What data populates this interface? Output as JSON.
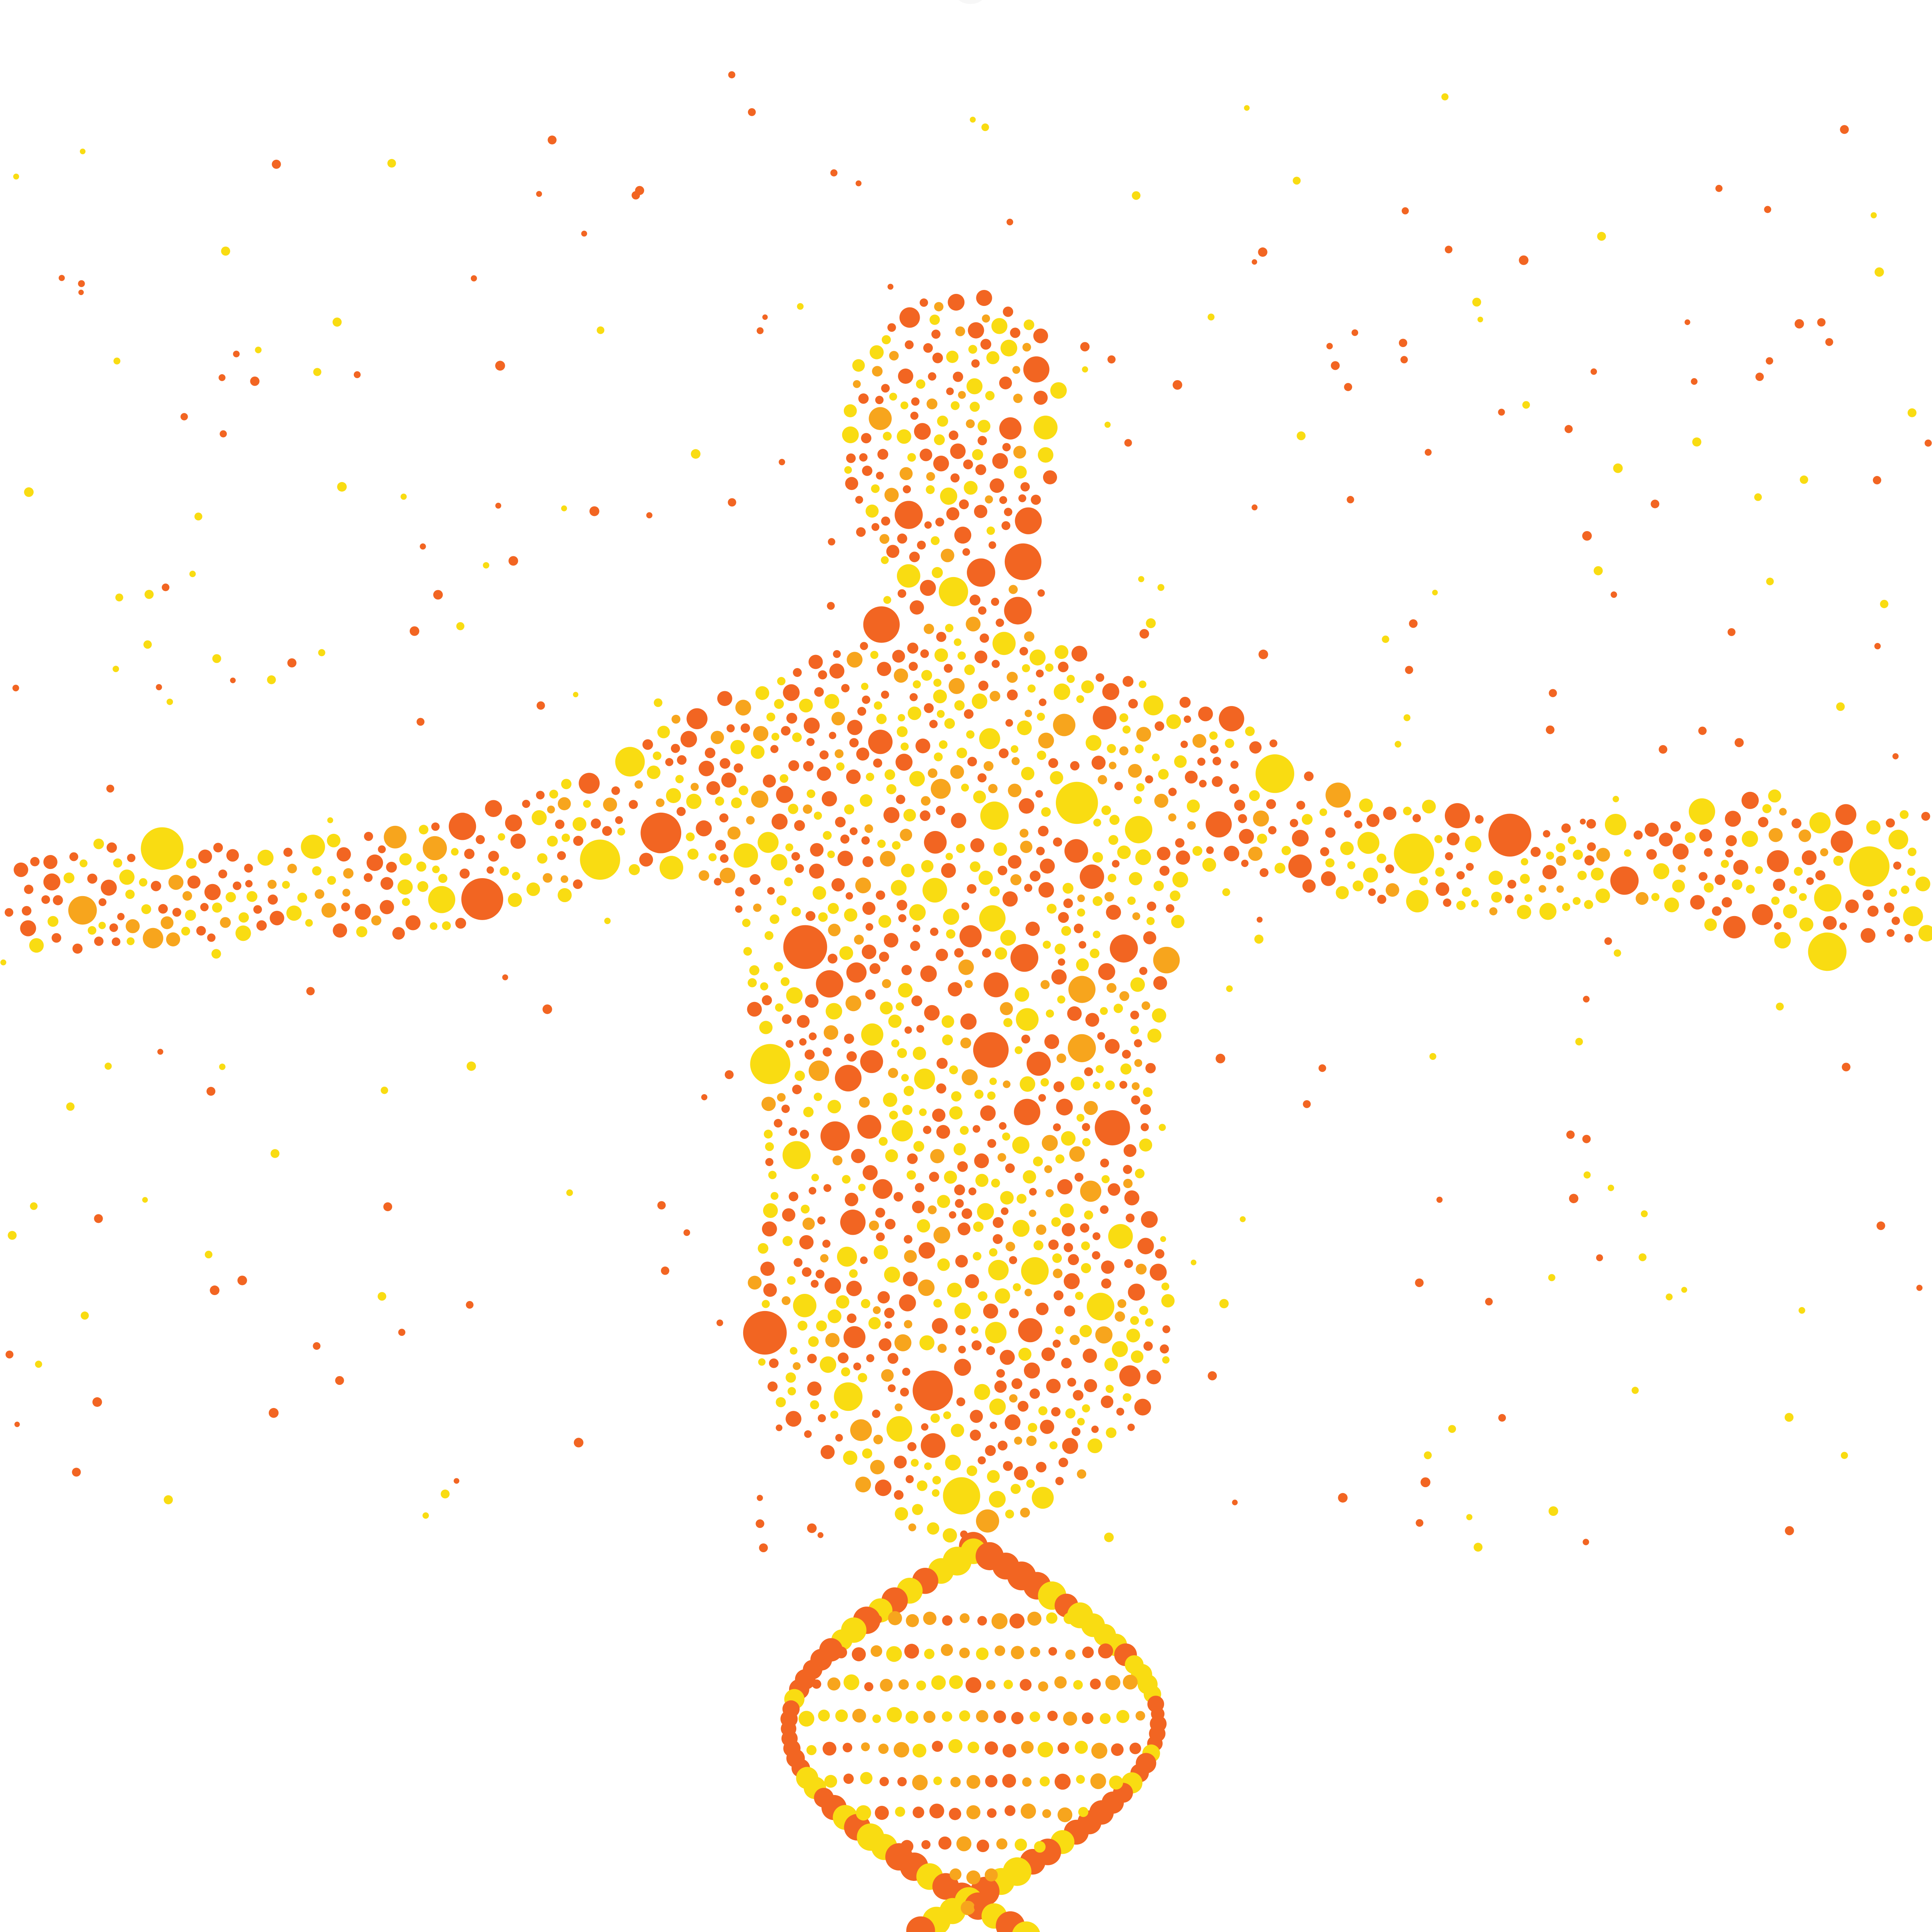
{
  "image": {
    "subject": "human-figure-and-dna-helix-made-of-dots",
    "background_color": "#ffffff",
    "palette": {
      "orange": "#f26522",
      "yellow": "#f9dc12",
      "amber": "#f7a51d"
    }
  }
}
